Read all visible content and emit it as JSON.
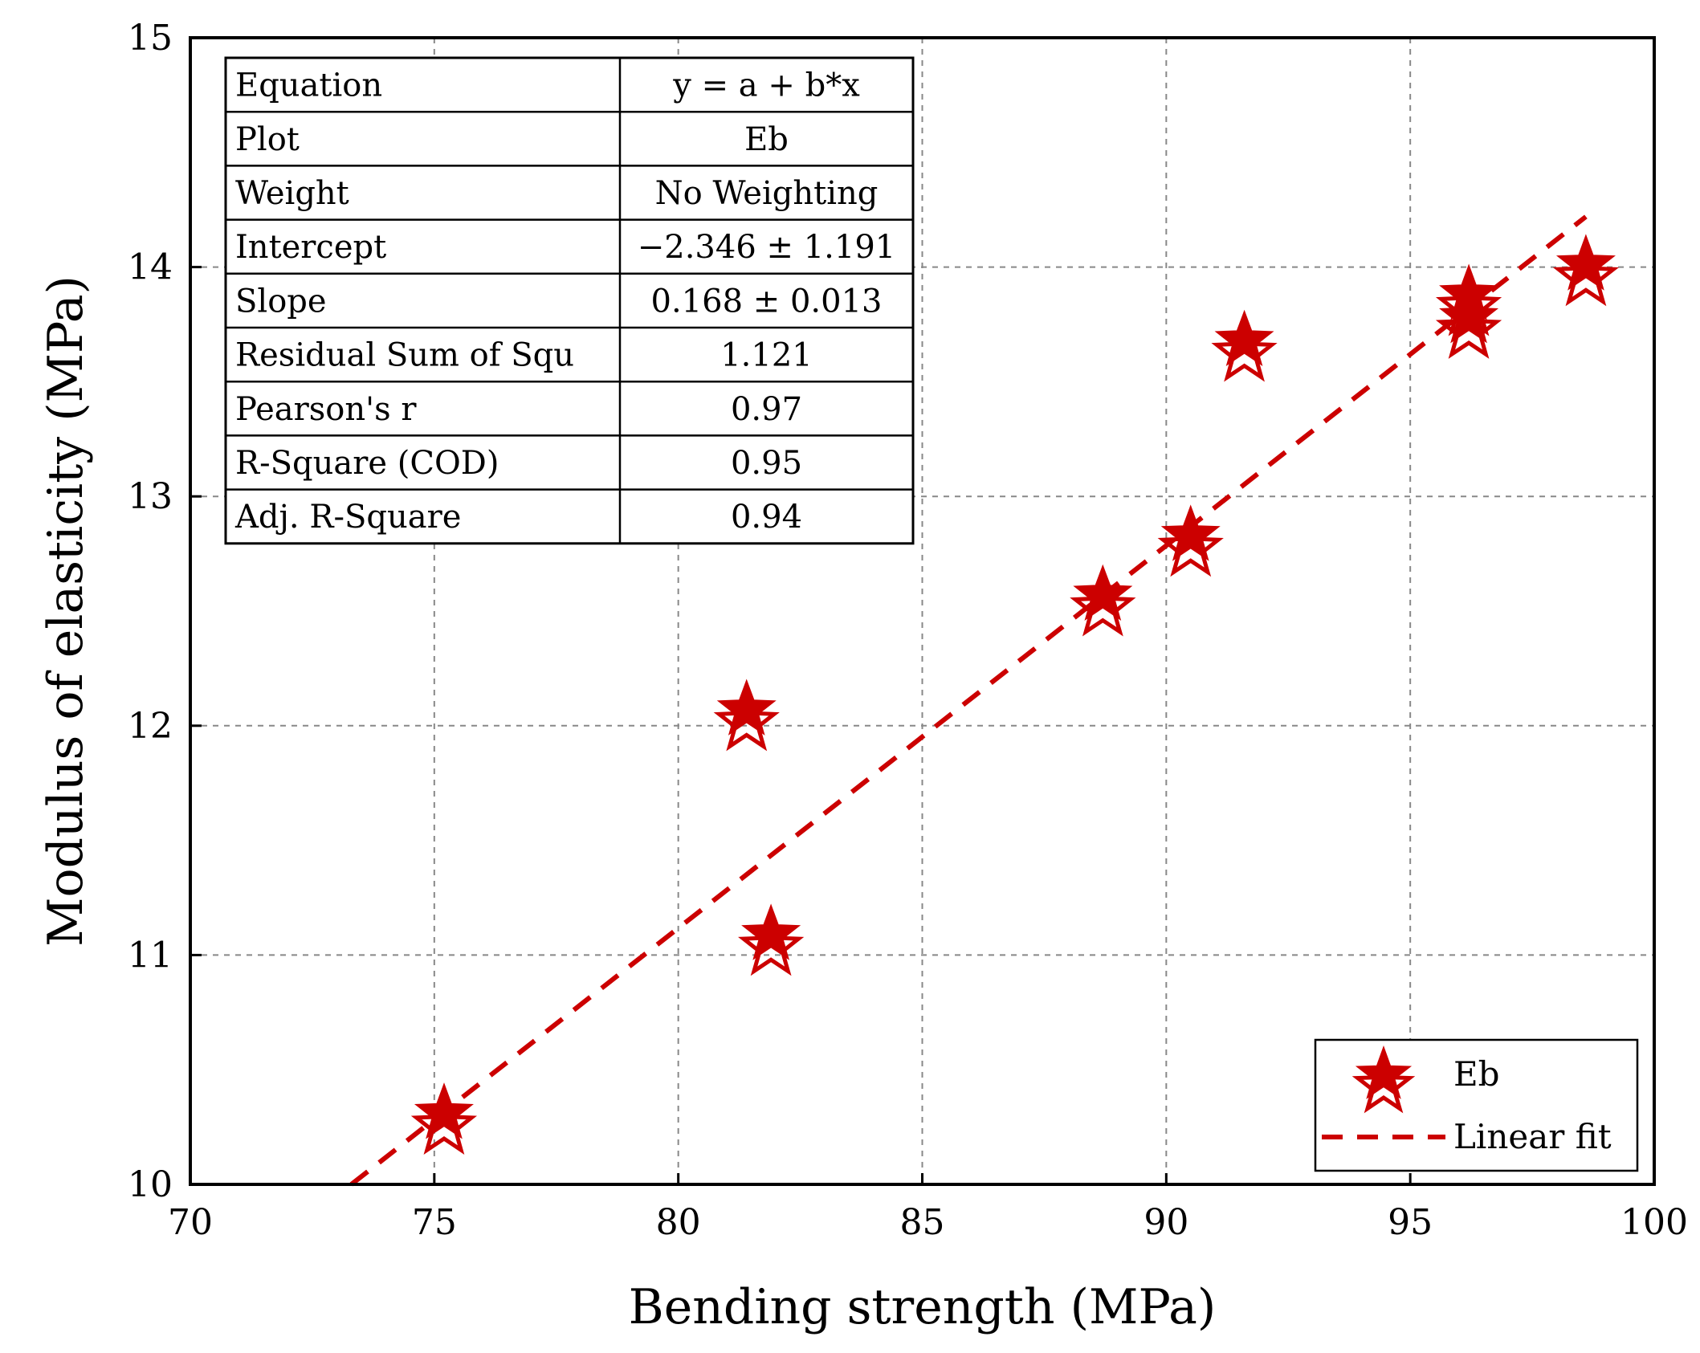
{
  "chart_data": {
    "type": "scatter",
    "title": "",
    "xlabel": "Bending strength (MPa)",
    "ylabel": "Modulus of elasticity (MPa)",
    "xlim": [
      70,
      100
    ],
    "ylim": [
      10,
      15
    ],
    "xticks": [
      70,
      75,
      80,
      85,
      90,
      95,
      100
    ],
    "yticks": [
      10,
      11,
      12,
      13,
      14,
      15
    ],
    "xtick_labels": [
      "70",
      "75",
      "80",
      "85",
      "90",
      "95",
      "100"
    ],
    "ytick_labels": [
      "10",
      "11",
      "12",
      "13",
      "14",
      "15"
    ],
    "grid": true,
    "series": [
      {
        "name": "Eb",
        "kind": "scatter",
        "marker": "star",
        "color": "#cc0000",
        "x": [
          75.2,
          81.4,
          81.9,
          88.7,
          90.5,
          91.6,
          96.2,
          96.2,
          98.6
        ],
        "y": [
          10.28,
          12.04,
          11.06,
          12.54,
          12.8,
          13.65,
          13.85,
          13.75,
          13.98
        ]
      },
      {
        "name": "Linear fit",
        "kind": "line",
        "style": "dashed",
        "color": "#cc0000",
        "x": [
          73.3,
          98.6
        ],
        "y": [
          10.0,
          14.22
        ]
      }
    ],
    "legend": {
      "position": "bottom-right",
      "entries": [
        "Eb",
        "Linear fit"
      ]
    },
    "fit_table": {
      "position": "top-left",
      "rows": [
        [
          "Equation",
          "y = a + b*x"
        ],
        [
          "Plot",
          "Eb"
        ],
        [
          "Weight",
          "No Weighting"
        ],
        [
          "Intercept",
          "−2.346 ± 1.191"
        ],
        [
          "Slope",
          "0.168 ± 0.013"
        ],
        [
          "Residual Sum of Squ",
          "1.121"
        ],
        [
          "Pearson's r",
          "0.97"
        ],
        [
          "R-Square (COD)",
          "0.95"
        ],
        [
          "Adj. R-Square",
          "0.94"
        ]
      ]
    }
  }
}
